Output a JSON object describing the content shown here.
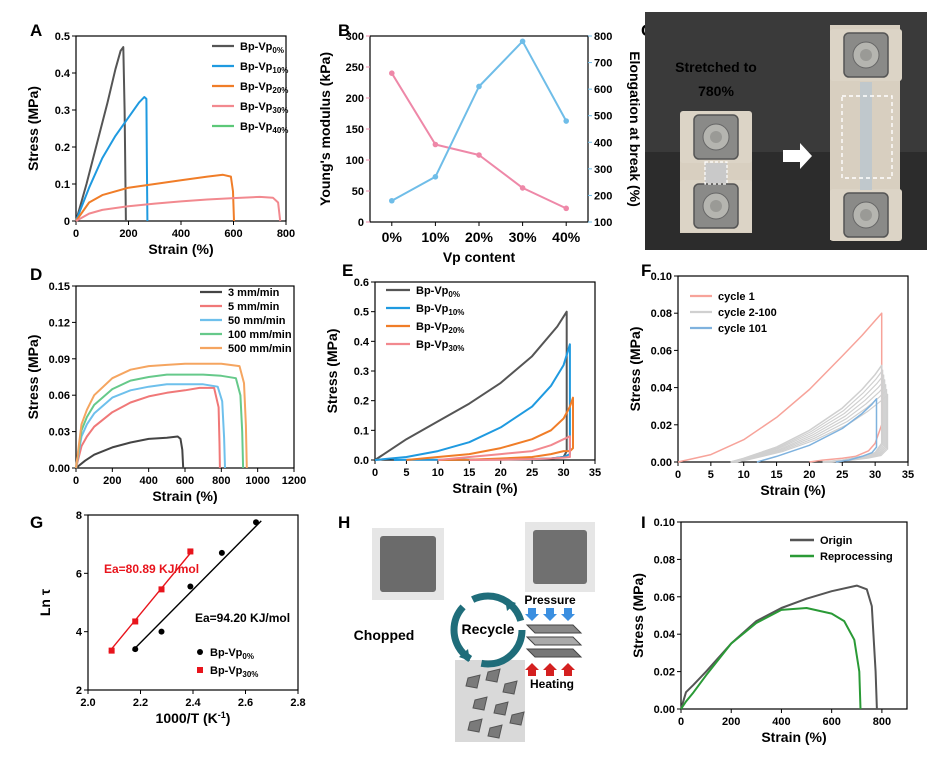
{
  "colors": {
    "gray": "#555555",
    "blue": "#1f9ae0",
    "orange": "#f07d28",
    "pink": "#f2898f",
    "green": "#5cc878",
    "modulus": "#ee88a8",
    "elong": "#6fbde8",
    "c1": "#f7a39a",
    "c2": "#d0d0d0",
    "c3": "#7fb2de",
    "r500": "#f5a560",
    "r100": "#66c98a",
    "r50": "#6ec0ec",
    "r5": "#f07878",
    "r3": "#444444",
    "fitBlack": "#000000",
    "fitRed": "#e8141c",
    "origin": "#555555",
    "reproc": "#2a9a36"
  },
  "panels": [
    {
      "id": "A",
      "label": "A",
      "xlabel": "Strain (%)",
      "ylabel": "Stress (MPa)"
    },
    {
      "id": "B",
      "label": "B",
      "xlabel": "Vp content",
      "ylabel": "Young's modulus (kPa)",
      "ylabel2": "Elongation at break (%)"
    },
    {
      "id": "C",
      "label": "C"
    },
    {
      "id": "D",
      "label": "D",
      "xlabel": "Strain (%)",
      "ylabel": "Stress (MPa)"
    },
    {
      "id": "E",
      "label": "E",
      "xlabel": "Strain (%)",
      "ylabel": "Stress (MPa)"
    },
    {
      "id": "F",
      "label": "F",
      "xlabel": "Strain (%)",
      "ylabel": "Stress (MPa)"
    },
    {
      "id": "G",
      "label": "G",
      "xlabel": "1000/T (K",
      "xlabel_sup": "-1",
      "xlabel_end": ")",
      "ylabel": "Ln τ"
    },
    {
      "id": "H",
      "label": "H"
    },
    {
      "id": "I",
      "label": "I",
      "xlabel": "Strain (%)",
      "ylabel": "Stress (MPa)"
    }
  ],
  "photo_c": {
    "text_line1": "Stretched to",
    "text_line2": "780%"
  },
  "photo_h": {
    "chopped": "Chopped",
    "recycle": "Recycle",
    "pressure": "Pressure",
    "heating": "Heating"
  },
  "chart_data": [
    {
      "panel": "A",
      "type": "line",
      "xlim": [
        0,
        800
      ],
      "ylim": [
        0,
        0.5
      ],
      "xticks": [
        0,
        200,
        400,
        600,
        800
      ],
      "yticks": [
        0.0,
        0.1,
        0.2,
        0.3,
        0.4,
        0.5
      ],
      "legend_position": "top-right",
      "series": [
        {
          "name": "Bp-Vp",
          "sub": "0%",
          "color": "gray",
          "x": [
            0,
            40,
            80,
            120,
            150,
            170,
            180,
            185,
            190
          ],
          "y": [
            0,
            0.1,
            0.21,
            0.32,
            0.41,
            0.46,
            0.47,
            0.3,
            0
          ]
        },
        {
          "name": "Bp-Vp",
          "sub": "10%",
          "color": "blue",
          "x": [
            0,
            50,
            100,
            150,
            200,
            240,
            260,
            268,
            270,
            272
          ],
          "y": [
            0,
            0.09,
            0.17,
            0.23,
            0.28,
            0.32,
            0.335,
            0.33,
            0.15,
            0
          ]
        },
        {
          "name": "Bp-Vp",
          "sub": "20%",
          "color": "orange",
          "x": [
            0,
            50,
            100,
            200,
            300,
            400,
            500,
            560,
            590,
            598,
            602
          ],
          "y": [
            0,
            0.05,
            0.07,
            0.09,
            0.1,
            0.11,
            0.12,
            0.125,
            0.12,
            0.08,
            0
          ]
        },
        {
          "name": "Bp-Vp",
          "sub": "30%",
          "color": "pink",
          "x": [
            0,
            50,
            100,
            200,
            300,
            400,
            500,
            600,
            700,
            750,
            770,
            778
          ],
          "y": [
            0,
            0.02,
            0.03,
            0.04,
            0.047,
            0.053,
            0.058,
            0.062,
            0.065,
            0.063,
            0.05,
            0
          ]
        },
        {
          "name": "Bp-Vp",
          "sub": "40%",
          "color": "green",
          "x": [],
          "y": []
        }
      ]
    },
    {
      "panel": "B",
      "type": "line",
      "categories": [
        "0%",
        "10%",
        "20%",
        "30%",
        "40%"
      ],
      "ylim": [
        0,
        300
      ],
      "yticks": [
        0,
        50,
        100,
        150,
        200,
        250,
        300
      ],
      "ylim2": [
        100,
        800
      ],
      "yticks2": [
        100,
        200,
        300,
        400,
        500,
        600,
        700,
        800
      ],
      "series": [
        {
          "name": "Young's modulus",
          "color": "modulus",
          "axis": "left",
          "values": [
            240,
            125,
            108,
            55,
            22
          ]
        },
        {
          "name": "Elongation at break",
          "color": "elong",
          "axis": "right",
          "values": [
            180,
            270,
            610,
            780,
            480
          ]
        }
      ]
    },
    {
      "panel": "D",
      "type": "line",
      "xlim": [
        0,
        1200
      ],
      "ylim": [
        0,
        0.15
      ],
      "xticks": [
        0,
        200,
        400,
        600,
        800,
        1000,
        1200
      ],
      "yticks": [
        "0.00",
        "0.03",
        "0.06",
        "0.09",
        "0.12",
        "0.15"
      ],
      "legend_position": "top-right",
      "series": [
        {
          "name": "3 mm/min",
          "color": "r3",
          "x": [
            0,
            50,
            100,
            200,
            300,
            400,
            500,
            560,
            575,
            585,
            590
          ],
          "y": [
            0,
            0.006,
            0.011,
            0.017,
            0.021,
            0.024,
            0.025,
            0.026,
            0.024,
            0.015,
            0
          ]
        },
        {
          "name": "5 mm/min",
          "color": "r5",
          "x": [
            0,
            30,
            60,
            100,
            200,
            300,
            400,
            500,
            600,
            680,
            760,
            785,
            790,
            792
          ],
          "y": [
            0,
            0.018,
            0.026,
            0.034,
            0.046,
            0.054,
            0.059,
            0.062,
            0.064,
            0.066,
            0.066,
            0.05,
            0.02,
            0
          ]
        },
        {
          "name": "50 mm/min",
          "color": "r50",
          "x": [
            0,
            30,
            60,
            100,
            200,
            300,
            400,
            500,
            600,
            700,
            780,
            805,
            815,
            820
          ],
          "y": [
            0,
            0.026,
            0.036,
            0.045,
            0.058,
            0.064,
            0.067,
            0.069,
            0.069,
            0.069,
            0.067,
            0.055,
            0.025,
            0
          ]
        },
        {
          "name": "100 mm/min",
          "color": "r100",
          "x": [
            0,
            30,
            60,
            100,
            200,
            300,
            400,
            500,
            600,
            700,
            800,
            880,
            905,
            915,
            920
          ],
          "y": [
            0,
            0.031,
            0.042,
            0.052,
            0.065,
            0.072,
            0.075,
            0.077,
            0.077,
            0.077,
            0.076,
            0.074,
            0.06,
            0.03,
            0
          ]
        },
        {
          "name": "500 mm/min",
          "color": "r500",
          "x": [
            0,
            30,
            60,
            100,
            200,
            300,
            400,
            500,
            600,
            700,
            800,
            900,
            925,
            935,
            940
          ],
          "y": [
            0,
            0.036,
            0.048,
            0.06,
            0.074,
            0.081,
            0.084,
            0.085,
            0.086,
            0.086,
            0.086,
            0.084,
            0.07,
            0.035,
            0
          ]
        }
      ]
    },
    {
      "panel": "E",
      "type": "line",
      "xlim": [
        0,
        35
      ],
      "ylim": [
        0,
        0.6
      ],
      "xticks": [
        0,
        5,
        10,
        15,
        20,
        25,
        30,
        35
      ],
      "yticks": [
        "0.0",
        "0.1",
        "0.2",
        "0.3",
        "0.4",
        "0.5",
        "0.6"
      ],
      "legend_position": "top-left",
      "series": [
        {
          "name": "Bp-Vp",
          "sub": "0%",
          "color": "gray",
          "x": [
            0,
            5,
            10,
            15,
            20,
            25,
            29,
            30.5,
            30.5,
            30,
            28,
            25,
            20,
            15,
            12,
            10
          ],
          "y": [
            0,
            0.07,
            0.13,
            0.19,
            0.26,
            0.35,
            0.45,
            0.5,
            0.03,
            0.01,
            0.005,
            0.003,
            0.002,
            0.001,
            0,
            0
          ]
        },
        {
          "name": "Bp-Vp",
          "sub": "10%",
          "color": "blue",
          "x": [
            0,
            5,
            10,
            15,
            20,
            25,
            28,
            30,
            31,
            31,
            30,
            28,
            25,
            22,
            20,
            15,
            10,
            5,
            3
          ],
          "y": [
            0,
            0.01,
            0.03,
            0.06,
            0.11,
            0.18,
            0.25,
            0.32,
            0.39,
            0.02,
            0.01,
            0.005,
            0.003,
            0.003,
            0.003,
            0.001,
            0.001,
            0.001,
            0
          ]
        },
        {
          "name": "Bp-Vp",
          "sub": "20%",
          "color": "orange",
          "x": [
            5,
            10,
            15,
            20,
            25,
            28,
            30,
            31,
            31.5,
            31.5,
            31,
            30,
            28,
            25,
            20,
            15,
            10
          ],
          "y": [
            0,
            0.01,
            0.02,
            0.04,
            0.07,
            0.1,
            0.14,
            0.18,
            0.21,
            0.04,
            0.03,
            0.03,
            0.02,
            0.01,
            0.005,
            0.001,
            0
          ]
        },
        {
          "name": "Bp-Vp",
          "sub": "30%",
          "color": "pink",
          "x": [
            10,
            15,
            20,
            25,
            28,
            30,
            31,
            31,
            30,
            28,
            25,
            20,
            15
          ],
          "y": [
            0,
            0.01,
            0.02,
            0.03,
            0.05,
            0.07,
            0.08,
            0.01,
            0.008,
            0.005,
            0.003,
            0.001,
            0
          ]
        }
      ]
    },
    {
      "panel": "F",
      "type": "line",
      "xlim": [
        0,
        35
      ],
      "ylim": [
        0,
        0.1
      ],
      "xticks": [
        0,
        5,
        10,
        15,
        20,
        25,
        30,
        35
      ],
      "yticks": [
        "0.00",
        "0.02",
        "0.04",
        "0.06",
        "0.08",
        "0.10"
      ],
      "legend_position": "top-left",
      "series": [
        {
          "name": "cycle 1",
          "color": "c1",
          "x": [
            0,
            5,
            10,
            15,
            20,
            25,
            28,
            30,
            31,
            31,
            30,
            29,
            27,
            25,
            22,
            20
          ],
          "y": [
            0,
            0.004,
            0.012,
            0.024,
            0.039,
            0.057,
            0.068,
            0.076,
            0.08,
            0.02,
            0.01,
            0.006,
            0.003,
            0.002,
            0.001,
            0
          ]
        },
        {
          "name": "cycle 2-100",
          "color": "c2",
          "x": [
            8,
            10,
            15,
            20,
            25,
            28,
            30,
            31,
            31,
            30,
            28,
            25,
            22
          ],
          "y": [
            0,
            0.002,
            0.008,
            0.017,
            0.029,
            0.039,
            0.047,
            0.052,
            0.01,
            0.005,
            0.003,
            0.001,
            0
          ]
        },
        {
          "name": "cycle 101",
          "color": "c3",
          "x": [
            12,
            15,
            20,
            25,
            28,
            29.5,
            30.2,
            30.2,
            29.5,
            28,
            26,
            24
          ],
          "y": [
            0,
            0.003,
            0.009,
            0.018,
            0.026,
            0.031,
            0.034,
            0.008,
            0.005,
            0.003,
            0.001,
            0
          ]
        }
      ]
    },
    {
      "panel": "G",
      "type": "scatter",
      "xlim": [
        2.0,
        2.8
      ],
      "ylim": [
        2,
        8
      ],
      "xticks": [
        "2.0",
        "2.2",
        "2.4",
        "2.6",
        "2.8"
      ],
      "yticks": [
        2,
        4,
        6,
        8
      ],
      "legend_position": "bottom-right",
      "series": [
        {
          "name": "Bp-Vp",
          "sub": "0%",
          "color": "fitBlack",
          "marker": "circle",
          "x": [
            2.18,
            2.28,
            2.39,
            2.51,
            2.64
          ],
          "y": [
            3.4,
            4.0,
            5.55,
            6.7,
            7.75
          ],
          "fit": [
            [
              2.17,
              3.35
            ],
            [
              2.66,
              7.8
            ]
          ]
        },
        {
          "name": "Bp-Vp",
          "sub": "30%",
          "color": "fitRed",
          "marker": "square",
          "x": [
            2.09,
            2.18,
            2.28,
            2.39
          ],
          "y": [
            3.35,
            4.35,
            5.45,
            6.75
          ],
          "fit": [
            [
              2.08,
              3.3
            ],
            [
              2.4,
              6.8
            ]
          ]
        }
      ],
      "annotations": [
        {
          "text": "Ea=80.89 KJ/mol",
          "color": "fitRed"
        },
        {
          "text": "Ea=94.20 KJ/mol",
          "color": "fitBlack"
        }
      ]
    },
    {
      "panel": "I",
      "type": "line",
      "xlim": [
        0,
        900
      ],
      "ylim": [
        0,
        0.1
      ],
      "xticks": [
        0,
        200,
        400,
        600,
        800
      ],
      "yticks": [
        "0.00",
        "0.02",
        "0.04",
        "0.06",
        "0.08",
        "0.10"
      ],
      "legend_position": "top-right",
      "series": [
        {
          "name": "Origin",
          "color": "origin",
          "x": [
            0,
            20,
            50,
            100,
            200,
            300,
            400,
            500,
            600,
            700,
            740,
            760,
            775,
            780
          ],
          "y": [
            0,
            0.009,
            0.013,
            0.02,
            0.035,
            0.047,
            0.054,
            0.059,
            0.063,
            0.066,
            0.064,
            0.055,
            0.02,
            0
          ]
        },
        {
          "name": "Reprocessing",
          "color": "reproc",
          "x": [
            0,
            20,
            50,
            100,
            200,
            300,
            400,
            500,
            600,
            650,
            690,
            710,
            715
          ],
          "y": [
            0,
            0.004,
            0.009,
            0.018,
            0.035,
            0.046,
            0.053,
            0.054,
            0.051,
            0.047,
            0.037,
            0.02,
            0
          ]
        }
      ]
    }
  ]
}
